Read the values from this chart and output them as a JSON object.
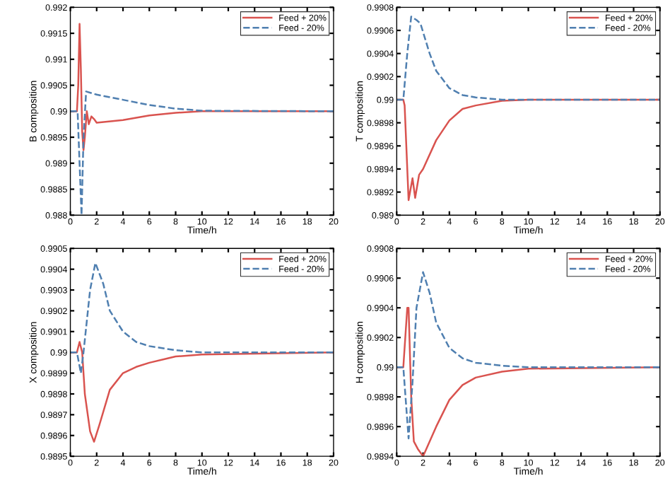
{
  "chart_data": [
    {
      "type": "line",
      "xlabel": "Time/h",
      "ylabel": "B composition",
      "xlim": [
        0,
        20
      ],
      "xticks": [
        0,
        2,
        4,
        6,
        8,
        10,
        12,
        14,
        16,
        18,
        20
      ],
      "ylim": [
        0.988,
        0.992
      ],
      "yticks": [
        0.988,
        0.9885,
        0.989,
        0.9895,
        0.99,
        0.9905,
        0.991,
        0.9915,
        0.992
      ],
      "legend": "top right",
      "grid": false,
      "series": [
        {
          "name": "Feed + 20%",
          "color": "#d9534f",
          "line_style": "solid",
          "x": [
            0,
            0.5,
            0.6,
            0.7,
            0.8,
            0.9,
            1.0,
            1.1,
            1.25,
            1.4,
            1.6,
            1.8,
            2,
            4,
            6,
            8,
            10,
            20
          ],
          "values": [
            0.99,
            0.99,
            0.9905,
            0.99168,
            0.9908,
            0.9896,
            0.98925,
            0.9895,
            0.99,
            0.98975,
            0.9899,
            0.98985,
            0.98978,
            0.98983,
            0.98992,
            0.98997,
            0.99,
            0.99
          ]
        },
        {
          "name": "Feed - 20%",
          "color": "#4f7fb0",
          "line_style": "dashed",
          "x": [
            0,
            0.55,
            0.85,
            1.0,
            1.2,
            2,
            4,
            6,
            8,
            10,
            20
          ],
          "values": [
            0.99,
            0.99,
            0.988,
            0.9895,
            0.99038,
            0.99032,
            0.99022,
            0.99012,
            0.99005,
            0.99001,
            0.99
          ]
        }
      ]
    },
    {
      "type": "line",
      "xlabel": "Time/h",
      "ylabel": "T composition",
      "xlim": [
        0,
        20
      ],
      "xticks": [
        0,
        2,
        4,
        6,
        8,
        10,
        12,
        14,
        16,
        18,
        20
      ],
      "ylim": [
        0.989,
        0.9908
      ],
      "yticks": [
        0.989,
        0.9892,
        0.9894,
        0.9896,
        0.9898,
        0.99,
        0.9902,
        0.9904,
        0.9906,
        0.9908
      ],
      "legend": "top right",
      "grid": false,
      "series": [
        {
          "name": "Feed + 20%",
          "color": "#d9534f",
          "line_style": "solid",
          "x": [
            0,
            0.5,
            0.6,
            0.9,
            1.2,
            1.4,
            1.7,
            2,
            3,
            4,
            5,
            6,
            8,
            10,
            20
          ],
          "values": [
            0.99,
            0.99,
            0.98995,
            0.98913,
            0.98932,
            0.98915,
            0.98935,
            0.9894,
            0.98965,
            0.98982,
            0.98992,
            0.98995,
            0.98999,
            0.99,
            0.99
          ]
        },
        {
          "name": "Feed - 20%",
          "color": "#4f7fb0",
          "line_style": "dashed",
          "x": [
            0,
            0.5,
            0.8,
            1.1,
            1.5,
            1.8,
            2.5,
            3,
            4,
            5,
            6,
            8,
            20
          ],
          "values": [
            0.99,
            0.99,
            0.9904,
            0.99072,
            0.99069,
            0.99066,
            0.9904,
            0.99025,
            0.9901,
            0.99004,
            0.99002,
            0.99,
            0.99
          ]
        }
      ]
    },
    {
      "type": "line",
      "xlabel": "Time/h",
      "ylabel": "X composition",
      "xlim": [
        0,
        20
      ],
      "xticks": [
        0,
        2,
        4,
        6,
        8,
        10,
        12,
        14,
        16,
        18,
        20
      ],
      "ylim": [
        0.9895,
        0.9905
      ],
      "yticks": [
        0.9895,
        0.9896,
        0.9897,
        0.9898,
        0.9899,
        0.99,
        0.9901,
        0.9902,
        0.9903,
        0.9904,
        0.9905
      ],
      "legend": "top right",
      "grid": false,
      "series": [
        {
          "name": "Feed + 20%",
          "color": "#d9534f",
          "line_style": "solid",
          "x": [
            0,
            0.5,
            0.7,
            0.9,
            1.1,
            1.5,
            1.8,
            2.2,
            3,
            4,
            5,
            6,
            8,
            10,
            20
          ],
          "values": [
            0.99,
            0.99,
            0.99005,
            0.99,
            0.9898,
            0.98962,
            0.98957,
            0.98965,
            0.98982,
            0.9899,
            0.98993,
            0.98995,
            0.98998,
            0.98999,
            0.99
          ]
        },
        {
          "name": "Feed - 20%",
          "color": "#4f7fb0",
          "line_style": "dashed",
          "x": [
            0,
            0.5,
            0.8,
            1.0,
            1.5,
            1.9,
            2.5,
            3,
            4,
            5,
            6,
            8,
            10,
            20
          ],
          "values": [
            0.99,
            0.99,
            0.9899,
            0.99,
            0.9903,
            0.99043,
            0.99033,
            0.9902,
            0.9901,
            0.99005,
            0.99003,
            0.99001,
            0.99,
            0.99
          ]
        }
      ]
    },
    {
      "type": "line",
      "xlabel": "Time/h",
      "ylabel": "H composition",
      "xlim": [
        0,
        20
      ],
      "xticks": [
        0,
        2,
        4,
        6,
        8,
        10,
        12,
        14,
        16,
        18,
        20
      ],
      "ylim": [
        0.9894,
        0.9908
      ],
      "yticks": [
        0.9894,
        0.9896,
        0.9898,
        0.99,
        0.9902,
        0.9904,
        0.9906,
        0.9908
      ],
      "legend": "top right",
      "grid": false,
      "series": [
        {
          "name": "Feed + 20%",
          "color": "#d9534f",
          "line_style": "solid",
          "x": [
            0,
            0.5,
            0.8,
            0.9,
            1.1,
            1.3,
            1.6,
            2,
            3,
            4,
            5,
            6,
            8,
            10,
            20
          ],
          "values": [
            0.99,
            0.99,
            0.9904,
            0.9904,
            0.9898,
            0.9895,
            0.98945,
            0.9894,
            0.9896,
            0.98978,
            0.98988,
            0.98993,
            0.98997,
            0.98999,
            0.99
          ]
        },
        {
          "name": "Feed - 20%",
          "color": "#4f7fb0",
          "line_style": "dashed",
          "x": [
            0,
            0.5,
            0.9,
            1.2,
            1.5,
            2,
            2.5,
            3,
            4,
            5,
            6,
            8,
            10,
            20
          ],
          "values": [
            0.99,
            0.99,
            0.98952,
            0.9899,
            0.9904,
            0.99064,
            0.9905,
            0.9903,
            0.99013,
            0.99006,
            0.99003,
            0.99001,
            0.99,
            0.99
          ]
        }
      ]
    }
  ]
}
